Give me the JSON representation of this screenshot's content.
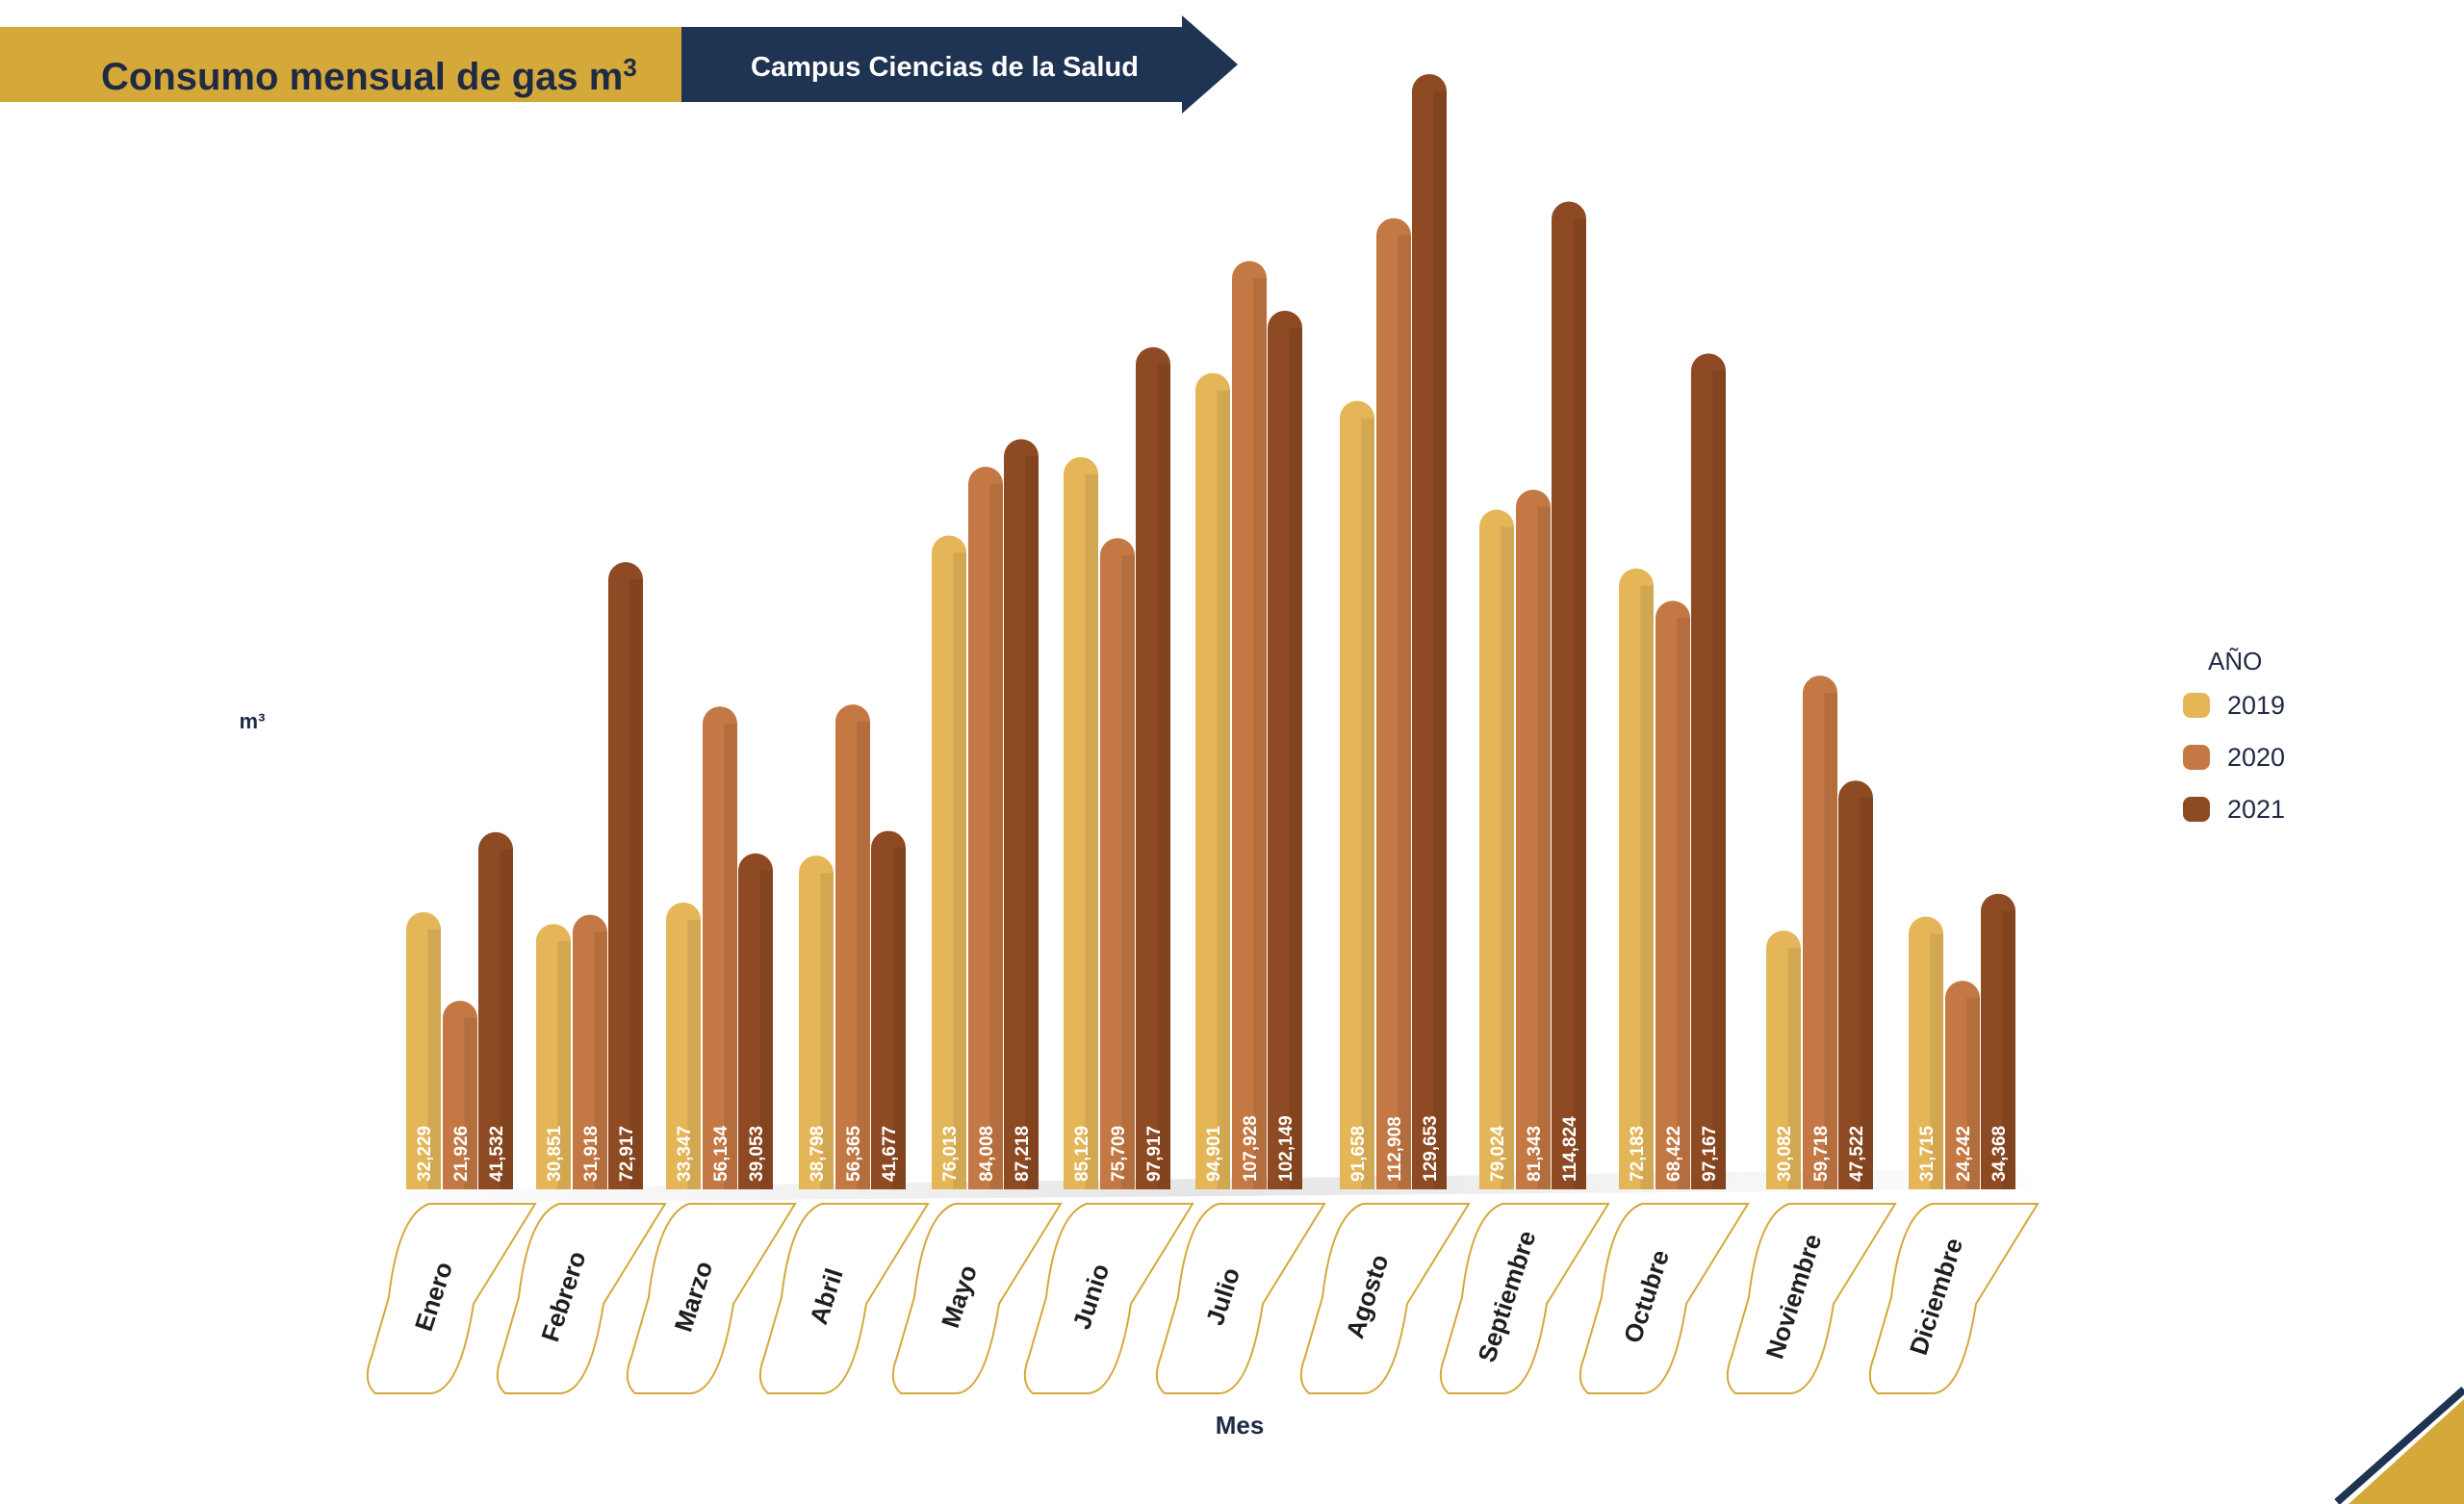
{
  "header": {
    "title": "Consumo mensual de gas m",
    "title_sup": "3",
    "subtitle": "Campus Ciencias de la Salud"
  },
  "colors": {
    "gold": "#d4a93a",
    "navy": "#1f3352",
    "series_2019": "#e4b658",
    "series_2020": "#c47843",
    "series_2021": "#8e4a22"
  },
  "chart_data": {
    "type": "bar",
    "title": "Consumo mensual de gas m³",
    "subtitle": "Campus Ciencias de la Salud",
    "xlabel": "Mes",
    "ylabel": "m³",
    "legend_title": "AÑO",
    "legend_position": "right",
    "grid": false,
    "categories": [
      "Enero",
      "Febrero",
      "Marzo",
      "Abril",
      "Mayo",
      "Junio",
      "Julio",
      "Agosto",
      "Septiembre",
      "Octubre",
      "Noviembre",
      "Diciembre"
    ],
    "series": [
      {
        "name": "2019",
        "values": [
          32229,
          30851,
          33347,
          38798,
          76013,
          85129,
          94901,
          91658,
          79024,
          72183,
          30082,
          31715
        ]
      },
      {
        "name": "2020",
        "values": [
          21926,
          31918,
          56134,
          56365,
          84008,
          75709,
          107928,
          112908,
          81343,
          68422,
          59718,
          24242
        ]
      },
      {
        "name": "2021",
        "values": [
          41532,
          72917,
          39053,
          41677,
          87218,
          97917,
          102149,
          129653,
          114824,
          97167,
          47522,
          34368
        ]
      }
    ],
    "labels": [
      [
        "32,229",
        "30,851",
        "33,347",
        "38,798",
        "76,013",
        "85,129",
        "94,901",
        "91,658",
        "79,024",
        "72,183",
        "30,082",
        "31,715"
      ],
      [
        "21,926",
        "31,918",
        "56,134",
        "56,365",
        "84,008",
        "75,709",
        "107,928",
        "112,908",
        "81,343",
        "68,422",
        "59,718",
        "24,242"
      ],
      [
        "41,532",
        "72,917",
        "39,053",
        "41,677",
        "87,218",
        "97,917",
        "102,149",
        "129,653",
        "114,824",
        "97,167",
        "47,522",
        "34,368"
      ]
    ]
  }
}
